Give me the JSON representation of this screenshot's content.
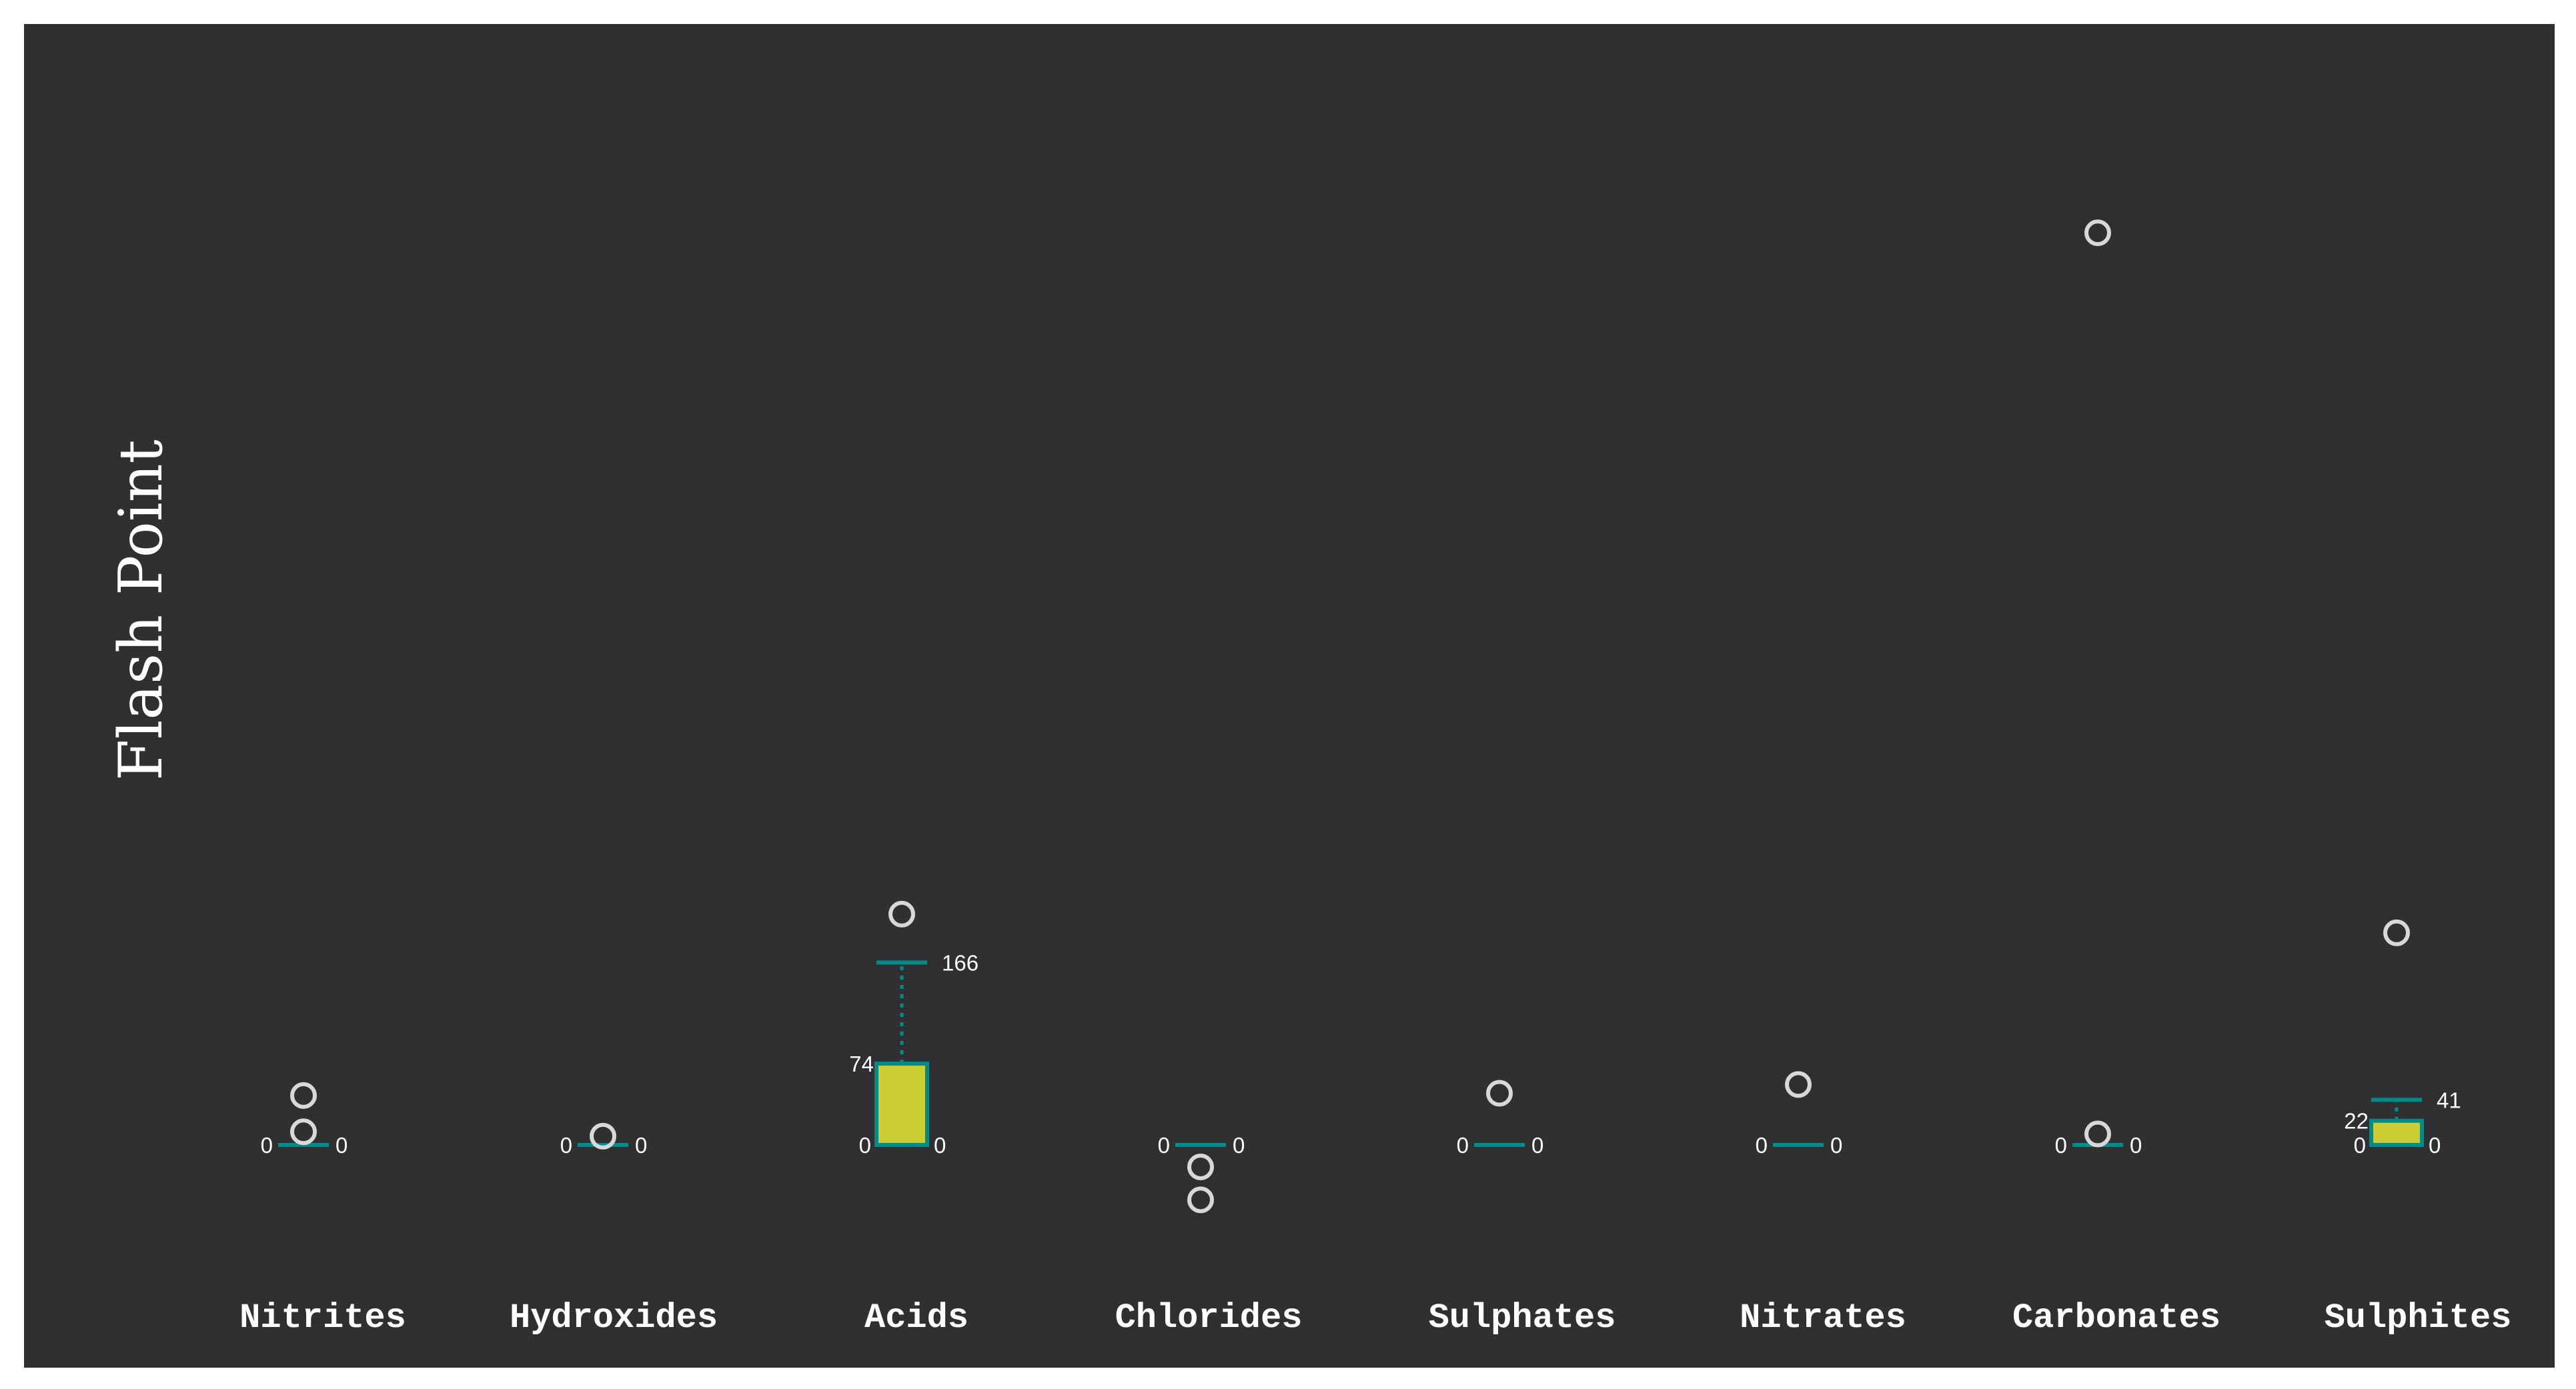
{
  "chart_data": {
    "type": "boxplot",
    "ylabel": "Flash Point",
    "ylim": [
      -20,
      830
    ],
    "colors": {
      "box_fill": "#cccc33",
      "box_stroke": "#008b8b",
      "outlier": "#d8d8d8"
    },
    "categories": [
      "Nitrites",
      "Hydroxides",
      "Acids",
      "Chlorides",
      "Sulphates",
      "Nitrates",
      "Carbonates",
      "Sulphites"
    ],
    "boxes": [
      {
        "category": "Nitrites",
        "min": 0,
        "q1": 0,
        "median": 0,
        "q3": 0,
        "max": 0,
        "outliers": [
          12,
          45
        ]
      },
      {
        "category": "Hydroxides",
        "min": 0,
        "q1": 0,
        "median": 0,
        "q3": 0,
        "max": 0,
        "outliers": [
          8
        ]
      },
      {
        "category": "Acids",
        "min": 0,
        "q1": 0,
        "median": 0,
        "q3": 74,
        "max": 166,
        "outliers": [
          210
        ]
      },
      {
        "category": "Chlorides",
        "min": 0,
        "q1": 0,
        "median": 0,
        "q3": 0,
        "max": 0,
        "outliers": [
          -20,
          -50
        ]
      },
      {
        "category": "Sulphates",
        "min": 0,
        "q1": 0,
        "median": 0,
        "q3": 0,
        "max": 0,
        "outliers": [
          47
        ]
      },
      {
        "category": "Nitrates",
        "min": 0,
        "q1": 0,
        "median": 0,
        "q3": 0,
        "max": 0,
        "outliers": [
          55
        ]
      },
      {
        "category": "Carbonates",
        "min": 0,
        "q1": 0,
        "median": 0,
        "q3": 0,
        "max": 0,
        "outliers": [
          10,
          830
        ]
      },
      {
        "category": "Sulphites",
        "min": 0,
        "q1": 0,
        "median": 0,
        "q3": 22,
        "max": 41,
        "outliers": [
          193
        ]
      }
    ],
    "labels": [
      {
        "category": "Nitrites",
        "left": "0",
        "right": "0"
      },
      {
        "category": "Hydroxides",
        "left": "0",
        "right": "0"
      },
      {
        "category": "Acids",
        "left": "0",
        "right": "0",
        "q3": "74",
        "max": "166"
      },
      {
        "category": "Chlorides",
        "left": "0",
        "right": "0"
      },
      {
        "category": "Sulphates",
        "left": "0",
        "right": "0"
      },
      {
        "category": "Nitrates",
        "left": "0",
        "right": "0"
      },
      {
        "category": "Carbonates",
        "left": "0",
        "right": "0"
      },
      {
        "category": "Sulphites",
        "left": "0",
        "right": "0",
        "q3": "22",
        "max": "41"
      }
    ]
  }
}
